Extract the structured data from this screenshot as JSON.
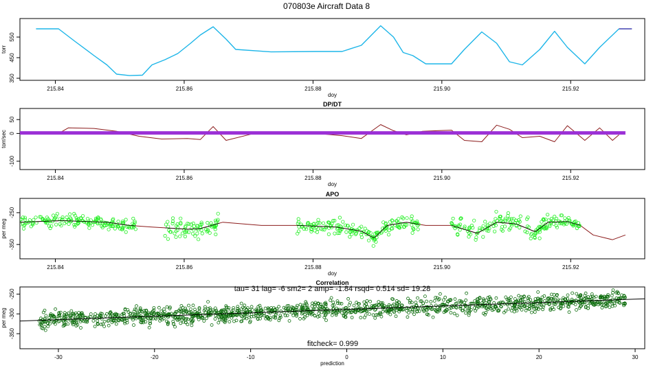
{
  "title": "070803e   Aircraft Data 8",
  "colors": {
    "pressure": "#1cb5e8",
    "pressure_tail": "#1a1aa0",
    "dpdt_line": "#8b1a1a",
    "dpdt_flat": "#9b30d6",
    "apo_points": "#22ee22",
    "apo_line": "#8b1a1a",
    "apo_smooth": "#000000",
    "corr_points": "#0a6b0a",
    "fit_line": "#000000"
  },
  "chart_data": [
    {
      "type": "line",
      "title": "",
      "xlabel": "doy",
      "ylabel": "torr",
      "xlim": [
        215.8345,
        215.9315
      ],
      "ylim": [
        340,
        640
      ],
      "xticks": [
        215.84,
        215.86,
        215.88,
        215.9,
        215.92
      ],
      "xtick_labels": [
        "215.84",
        "215.86",
        "215.88",
        "215.90",
        "215.92"
      ],
      "yticks": [
        350,
        450,
        550
      ],
      "ytick_labels": [
        "350",
        "450",
        "550"
      ],
      "series": [
        {
          "x": [
            215.837,
            215.8405,
            215.843,
            215.846,
            215.848,
            215.8495,
            215.8515,
            215.8535,
            215.855,
            215.857,
            215.859,
            215.861,
            215.8625,
            215.8645,
            215.8665,
            215.868,
            215.8735,
            215.8805,
            215.8845,
            215.8875,
            215.8905,
            215.8925,
            215.894,
            215.8955,
            215.8975,
            215.9015,
            215.9035,
            215.9062,
            215.9085,
            215.9105,
            215.9125,
            215.9152,
            215.9175,
            215.9195,
            215.9222,
            215.9245,
            215.9275
          ],
          "y": [
            590,
            590,
            530,
            460,
            415,
            370,
            363,
            365,
            415,
            440,
            470,
            520,
            560,
            600,
            540,
            490,
            478,
            480,
            480,
            510,
            605,
            550,
            475,
            460,
            420,
            420,
            490,
            575,
            520,
            430,
            415,
            490,
            578,
            500,
            420,
            500,
            590
          ]
        },
        {
          "x": [
            215.9275,
            215.9295
          ],
          "y": [
            590,
            590
          ]
        }
      ]
    },
    {
      "type": "line",
      "title": "DP/DT",
      "xlabel": "doy",
      "ylabel": "torr/sec",
      "xlim": [
        215.8345,
        215.9315
      ],
      "ylim": [
        -130,
        90
      ],
      "xticks": [
        215.84,
        215.86,
        215.88,
        215.9,
        215.92
      ],
      "xtick_labels": [
        "215.84",
        "215.86",
        "215.88",
        "215.90",
        "215.92"
      ],
      "yticks": [
        -100,
        0,
        50
      ],
      "ytick_labels": [
        "-100",
        "0",
        "50"
      ],
      "series": [
        {
          "x": [
            215.8405,
            215.842,
            215.846,
            215.8495,
            215.853,
            215.8565,
            215.8605,
            215.8625,
            215.8645,
            215.8665,
            215.8705,
            215.8805,
            215.8845,
            215.8875,
            215.8905,
            215.8925,
            215.8945,
            215.897,
            215.9015,
            215.9035,
            215.9062,
            215.9085,
            215.9105,
            215.9125,
            215.9152,
            215.9175,
            215.9195,
            215.9222,
            215.9245,
            215.9265,
            215.9275
          ],
          "y": [
            0,
            20,
            18,
            8,
            -10,
            -20,
            -18,
            -22,
            25,
            -25,
            -2,
            0,
            -8,
            -18,
            32,
            10,
            -5,
            8,
            12,
            -25,
            -30,
            30,
            15,
            -15,
            -10,
            -30,
            28,
            -25,
            20,
            -25,
            -5
          ]
        },
        {
          "x": [
            215.8345,
            215.9285
          ],
          "y": [
            2,
            2
          ]
        }
      ]
    },
    {
      "type": "scatter",
      "title": "APO",
      "xlabel": "doy",
      "ylabel": "per meg",
      "xlim": [
        215.8345,
        215.9315
      ],
      "ylim": [
        -395,
        -205
      ],
      "xticks": [
        215.84,
        215.86,
        215.88,
        215.9,
        215.92
      ],
      "xtick_labels": [
        "215.84",
        "215.86",
        "215.88",
        "215.90",
        "215.92"
      ],
      "yticks": [
        -350,
        -250
      ],
      "ytick_labels": [
        "-350",
        "-250"
      ],
      "segments": [
        {
          "x0": 215.8345,
          "x1": 215.8525,
          "mean": -272,
          "spread": 18
        },
        {
          "x0": 215.857,
          "x1": 215.8655,
          "mean": -305,
          "spread": 28
        },
        {
          "x0": 215.8775,
          "x1": 215.8965,
          "mean": -305,
          "spread": 22
        },
        {
          "x0": 215.9015,
          "x1": 215.9165,
          "mean": -295,
          "spread": 28
        },
        {
          "x0": 215.9165,
          "x1": 215.9215,
          "mean": -275,
          "spread": 15
        }
      ],
      "line": {
        "x": [
          215.8345,
          215.841,
          215.848,
          215.8515,
          215.855,
          215.8605,
          215.8625,
          215.866,
          215.872,
          215.8775,
          215.8835,
          215.8875,
          215.8895,
          215.8915,
          215.8945,
          215.8975,
          215.9015,
          215.9055,
          215.9085,
          215.9115,
          215.9145,
          215.9165,
          215.9195,
          215.9215,
          215.9235,
          215.9265,
          215.9285
        ],
        "y": [
          -280,
          -275,
          -280,
          -290,
          -295,
          -302,
          -300,
          -280,
          -290,
          -290,
          -295,
          -308,
          -330,
          -290,
          -280,
          -290,
          -290,
          -315,
          -280,
          -285,
          -310,
          -280,
          -278,
          -290,
          -320,
          -335,
          -320
        ]
      }
    },
    {
      "type": "scatter",
      "title": "Correlation",
      "subtitle": "tau= 31 lag= -6 sm2= 2 amp= -1.84 rsqd= 0.514 sd= 19.28",
      "annotation": "fitcheck= 0.999",
      "xlabel": "prediction",
      "ylabel": "per meg",
      "xlim": [
        -34,
        31
      ],
      "ylim": [
        -388,
        -232
      ],
      "xticks": [
        -30,
        -20,
        -10,
        0,
        10,
        20,
        30
      ],
      "xtick_labels": [
        "-30",
        "-20",
        "-10",
        "0",
        "10",
        "20",
        "30"
      ],
      "yticks": [
        -350,
        -300,
        -250
      ],
      "ytick_labels": [
        "-350",
        "-300",
        "-250"
      ],
      "fit": {
        "x0": -34,
        "y0": -318,
        "x1": 31,
        "y1": -262
      },
      "point_range": {
        "x0": -32,
        "x1": 29
      }
    }
  ]
}
